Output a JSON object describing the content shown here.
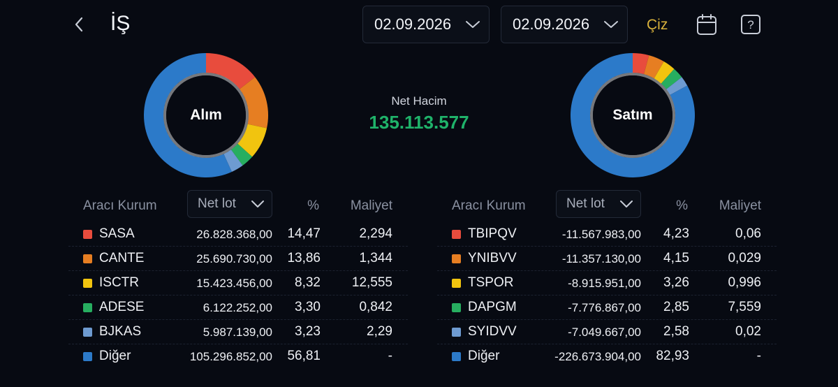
{
  "header": {
    "title": "İŞ",
    "date_from": "02.09.2026",
    "date_to": "02.09.2026",
    "draw_label": "Çiz",
    "icons": [
      "chevron-left-icon",
      "chevron-down-icon",
      "calendar-icon",
      "help-icon"
    ]
  },
  "summary": {
    "net_volume_label": "Net Hacim",
    "net_volume_value": "135.113.577",
    "net_volume_color": "#1fb36a"
  },
  "buy": {
    "chart_label": "Alım",
    "columns": {
      "broker": "Aracı Kurum",
      "metric": "Net lot",
      "percent": "%",
      "cost": "Maliyet"
    },
    "rows": [
      {
        "name": "SASA",
        "lot": "26.828.368,00",
        "pct": "14,47",
        "cost": "2,294",
        "pct_value": 14.47,
        "color": "#e84c3d"
      },
      {
        "name": "CANTE",
        "lot": "25.690.730,00",
        "pct": "13,86",
        "cost": "1,344",
        "pct_value": 13.86,
        "color": "#e67e22"
      },
      {
        "name": "ISCTR",
        "lot": "15.423.456,00",
        "pct": "8,32",
        "cost": "12,555",
        "pct_value": 8.32,
        "color": "#f1c40f"
      },
      {
        "name": "ADESE",
        "lot": "6.122.252,00",
        "pct": "3,30",
        "cost": "0,842",
        "pct_value": 3.3,
        "color": "#27ae60"
      },
      {
        "name": "BJKAS",
        "lot": "5.987.139,00",
        "pct": "3,23",
        "cost": "2,29",
        "pct_value": 3.23,
        "color": "#6e9bd1"
      },
      {
        "name": "Diğer",
        "lot": "105.296.852,00",
        "pct": "56,81",
        "cost": "-",
        "pct_value": 56.81,
        "color": "#2c7ac9"
      }
    ]
  },
  "sell": {
    "chart_label": "Satım",
    "columns": {
      "broker": "Aracı Kurum",
      "metric": "Net lot",
      "percent": "%",
      "cost": "Maliyet"
    },
    "rows": [
      {
        "name": "TBIPQV",
        "lot": "-11.567.983,00",
        "pct": "4,23",
        "cost": "0,06",
        "pct_value": 4.23,
        "color": "#e84c3d"
      },
      {
        "name": "YNIBVV",
        "lot": "-11.357.130,00",
        "pct": "4,15",
        "cost": "0,029",
        "pct_value": 4.15,
        "color": "#e67e22"
      },
      {
        "name": "TSPOR",
        "lot": "-8.915.951,00",
        "pct": "3,26",
        "cost": "0,996",
        "pct_value": 3.26,
        "color": "#f1c40f"
      },
      {
        "name": "DAPGM",
        "lot": "-7.776.867,00",
        "pct": "2,85",
        "cost": "7,559",
        "pct_value": 2.85,
        "color": "#27ae60"
      },
      {
        "name": "SYIDVV",
        "lot": "-7.049.667,00",
        "pct": "2,58",
        "cost": "0,02",
        "pct_value": 2.58,
        "color": "#6e9bd1"
      },
      {
        "name": "Diğer",
        "lot": "-226.673.904,00",
        "pct": "82,93",
        "cost": "-",
        "pct_value": 82.93,
        "color": "#2c7ac9"
      }
    ]
  }
}
